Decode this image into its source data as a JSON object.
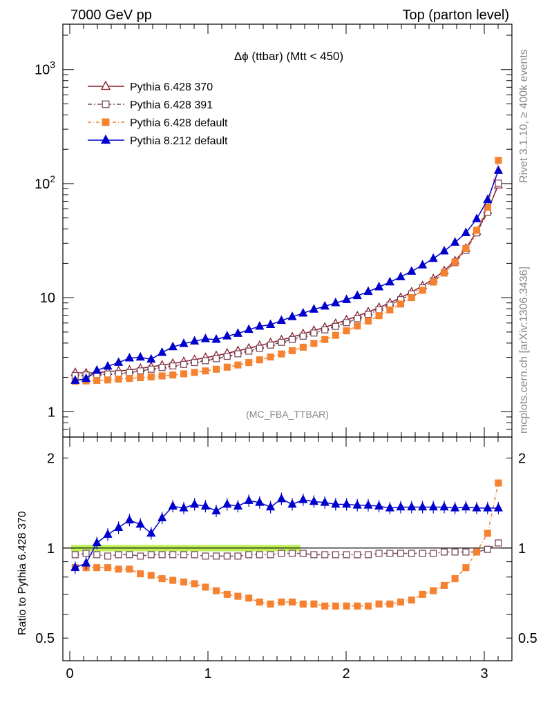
{
  "header": {
    "left": "7000 GeV pp",
    "right": "Top (parton level)"
  },
  "side_labels": {
    "rivet": "Rivet 3.1.10, ≥ 400k events",
    "mcplots": "mcplots.cern.ch [arXiv:1306.3436]"
  },
  "chart_data": [
    {
      "type": "line",
      "title": "Δϕ (ttbar) (Mtt < 450)",
      "watermark": "(MC_FBA_TTBAR)",
      "xlabel": "",
      "ylabel": "",
      "xlim": [
        -0.05,
        3.2
      ],
      "ylim": [
        0.6,
        2500
      ],
      "yscale": "log",
      "y_ticks": [
        "1",
        "10",
        "10^2",
        "10^3"
      ],
      "legend_position": "top-left",
      "x": [
        0.039,
        0.118,
        0.196,
        0.275,
        0.353,
        0.432,
        0.511,
        0.589,
        0.668,
        0.746,
        0.825,
        0.903,
        0.982,
        1.06,
        1.139,
        1.217,
        1.296,
        1.374,
        1.453,
        1.532,
        1.61,
        1.689,
        1.767,
        1.846,
        1.924,
        2.003,
        2.081,
        2.16,
        2.238,
        2.317,
        2.395,
        2.474,
        2.553,
        2.631,
        2.71,
        2.788,
        2.867,
        2.945,
        3.024,
        3.102
      ],
      "series": [
        {
          "name": "Pythia 6.428 370",
          "color": "#8b1a2b",
          "marker": "triangle-open",
          "dash": "",
          "values": [
            2.2,
            2.18,
            2.2,
            2.25,
            2.28,
            2.32,
            2.4,
            2.48,
            2.56,
            2.65,
            2.75,
            2.86,
            2.98,
            3.1,
            3.26,
            3.42,
            3.6,
            3.8,
            4.02,
            4.26,
            4.52,
            4.82,
            5.15,
            5.5,
            5.92,
            6.38,
            6.9,
            7.5,
            8.2,
            9.0,
            10.0,
            11.2,
            12.7,
            14.6,
            17.2,
            21.0,
            27.0,
            38.0,
            58.0,
            97.0
          ]
        },
        {
          "name": "Pythia 6.428 391",
          "color": "#7a4a5c",
          "marker": "square-open",
          "dash": "6,3,2,3",
          "values": [
            2.08,
            2.1,
            2.12,
            2.14,
            2.16,
            2.2,
            2.28,
            2.36,
            2.44,
            2.52,
            2.6,
            2.7,
            2.8,
            2.92,
            3.06,
            3.22,
            3.4,
            3.6,
            3.84,
            4.06,
            4.3,
            4.6,
            4.9,
            5.22,
            5.6,
            6.04,
            6.54,
            7.14,
            7.84,
            8.6,
            9.6,
            10.8,
            12.2,
            14.0,
            16.5,
            20.3,
            26.0,
            37.0,
            56.0,
            101.0
          ]
        },
        {
          "name": "Pythia 6.428 default",
          "color": "#f58231",
          "marker": "square",
          "dash": "5,3,1,3",
          "values": [
            1.85,
            1.86,
            1.88,
            1.9,
            1.93,
            1.96,
            1.99,
            2.02,
            2.06,
            2.1,
            2.15,
            2.21,
            2.28,
            2.36,
            2.46,
            2.57,
            2.7,
            2.85,
            3.02,
            3.21,
            3.43,
            3.68,
            3.97,
            4.3,
            4.68,
            5.12,
            5.64,
            6.24,
            6.95,
            7.8,
            8.8,
            10.0,
            11.6,
            13.7,
            16.5,
            20.5,
            27.0,
            39.0,
            62.0,
            160.0
          ]
        },
        {
          "name": "Pythia 8.212 default",
          "color": "#0000cc",
          "marker": "triangle",
          "dash": "",
          "values": [
            1.88,
            1.95,
            2.3,
            2.5,
            2.7,
            2.95,
            3.0,
            2.88,
            3.3,
            3.7,
            3.95,
            4.15,
            4.35,
            4.3,
            4.6,
            4.85,
            5.25,
            5.6,
            5.8,
            6.3,
            6.8,
            7.3,
            7.9,
            8.4,
            9.0,
            9.6,
            10.4,
            11.3,
            12.4,
            13.7,
            15.2,
            17.0,
            19.3,
            22.0,
            25.6,
            30.5,
            37.0,
            49.0,
            72.0,
            130.0
          ]
        }
      ]
    },
    {
      "type": "line",
      "title": "",
      "xlabel": "",
      "ylabel": "Ratio to Pythia 6.428 370",
      "xlim": [
        -0.05,
        3.2
      ],
      "ylim": [
        0.42,
        2.35
      ],
      "yscale": "log",
      "y_ticks": [
        "0.5",
        "1",
        "2"
      ],
      "x_ticks": [
        "0",
        "1",
        "2",
        "3"
      ],
      "reference_band": {
        "center": 1.0,
        "half_width": 0.025,
        "color": "#b4ee3c"
      },
      "x": [
        0.039,
        0.118,
        0.196,
        0.275,
        0.353,
        0.432,
        0.511,
        0.589,
        0.668,
        0.746,
        0.825,
        0.903,
        0.982,
        1.06,
        1.139,
        1.217,
        1.296,
        1.374,
        1.453,
        1.532,
        1.61,
        1.689,
        1.767,
        1.846,
        1.924,
        2.003,
        2.081,
        2.16,
        2.238,
        2.317,
        2.395,
        2.474,
        2.553,
        2.631,
        2.71,
        2.788,
        2.867,
        2.945,
        3.024,
        3.102
      ],
      "series": [
        {
          "name": "Pythia 6.428 391",
          "color": "#7a4a5c",
          "marker": "square-open",
          "dash": "6,3,2,3",
          "values": [
            0.95,
            0.96,
            0.95,
            0.94,
            0.95,
            0.95,
            0.94,
            0.95,
            0.95,
            0.95,
            0.95,
            0.95,
            0.94,
            0.94,
            0.94,
            0.94,
            0.95,
            0.95,
            0.95,
            0.96,
            0.96,
            0.96,
            0.95,
            0.95,
            0.95,
            0.95,
            0.95,
            0.95,
            0.96,
            0.96,
            0.96,
            0.96,
            0.96,
            0.96,
            0.97,
            0.97,
            0.97,
            0.97,
            0.99,
            1.04
          ]
        },
        {
          "name": "Pythia 6.428 default",
          "color": "#f58231",
          "marker": "square",
          "dash": "5,3,1,3",
          "values": [
            0.86,
            0.86,
            0.86,
            0.86,
            0.85,
            0.85,
            0.82,
            0.81,
            0.79,
            0.78,
            0.77,
            0.76,
            0.74,
            0.72,
            0.7,
            0.69,
            0.68,
            0.66,
            0.65,
            0.66,
            0.66,
            0.65,
            0.65,
            0.64,
            0.64,
            0.64,
            0.64,
            0.64,
            0.65,
            0.65,
            0.66,
            0.67,
            0.7,
            0.72,
            0.75,
            0.79,
            0.86,
            0.97,
            1.12,
            1.65
          ]
        },
        {
          "name": "Pythia 8.212 default",
          "color": "#0000cc",
          "marker": "triangle",
          "dash": "",
          "values": [
            0.86,
            0.89,
            1.04,
            1.11,
            1.17,
            1.24,
            1.2,
            1.12,
            1.26,
            1.38,
            1.36,
            1.4,
            1.38,
            1.33,
            1.4,
            1.38,
            1.44,
            1.42,
            1.37,
            1.46,
            1.4,
            1.45,
            1.43,
            1.42,
            1.4,
            1.4,
            1.39,
            1.39,
            1.38,
            1.36,
            1.37,
            1.37,
            1.37,
            1.37,
            1.37,
            1.36,
            1.37,
            1.36,
            1.36,
            1.36
          ]
        }
      ]
    }
  ]
}
